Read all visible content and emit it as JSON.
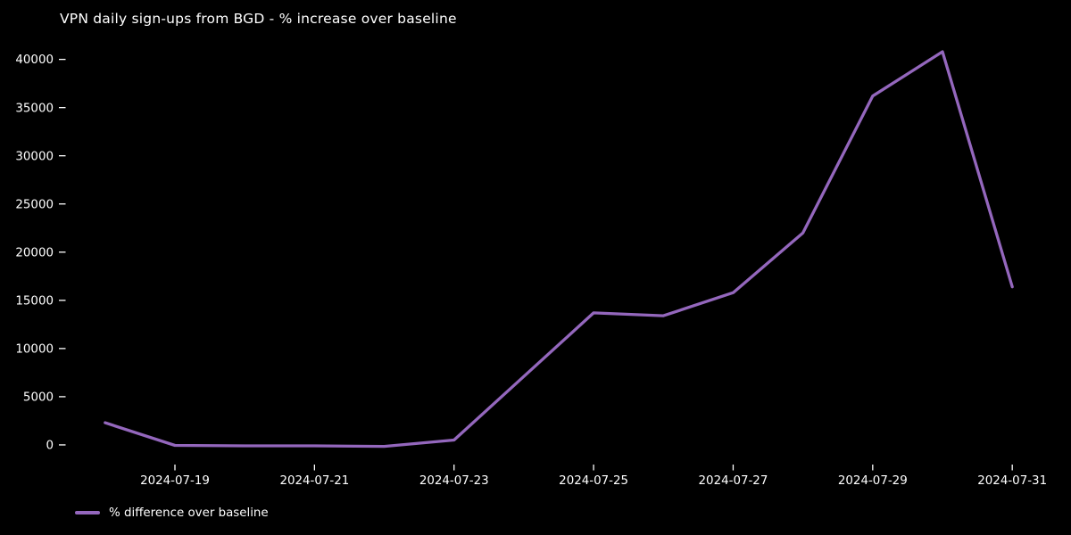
{
  "figure": {
    "background": "#000000",
    "text_color": "#ffffff"
  },
  "chart_data": {
    "type": "line",
    "title": "VPN daily sign-ups from BGD - % increase over baseline",
    "x": [
      "2024-07-18",
      "2024-07-19",
      "2024-07-20",
      "2024-07-21",
      "2024-07-22",
      "2024-07-23",
      "2024-07-24",
      "2024-07-25",
      "2024-07-26",
      "2024-07-27",
      "2024-07-28",
      "2024-07-29",
      "2024-07-30",
      "2024-07-31"
    ],
    "series": [
      {
        "name": "% difference over baseline",
        "color": "#9467bd",
        "values": [
          2300,
          -50,
          -100,
          -100,
          -150,
          500,
          7100,
          13700,
          13400,
          15800,
          22000,
          36200,
          40800,
          16400
        ]
      }
    ],
    "xlabel": "",
    "ylabel": "",
    "xtick_labels": [
      "2024-07-19",
      "2024-07-21",
      "2024-07-23",
      "2024-07-25",
      "2024-07-27",
      "2024-07-29",
      "2024-07-31"
    ],
    "ytick_values": [
      0,
      5000,
      10000,
      15000,
      20000,
      25000,
      30000,
      35000,
      40000
    ],
    "ylim": [
      -2040,
      42740
    ],
    "x_margin_days": 0.65,
    "grid": false,
    "legend_position": "lower-left"
  }
}
